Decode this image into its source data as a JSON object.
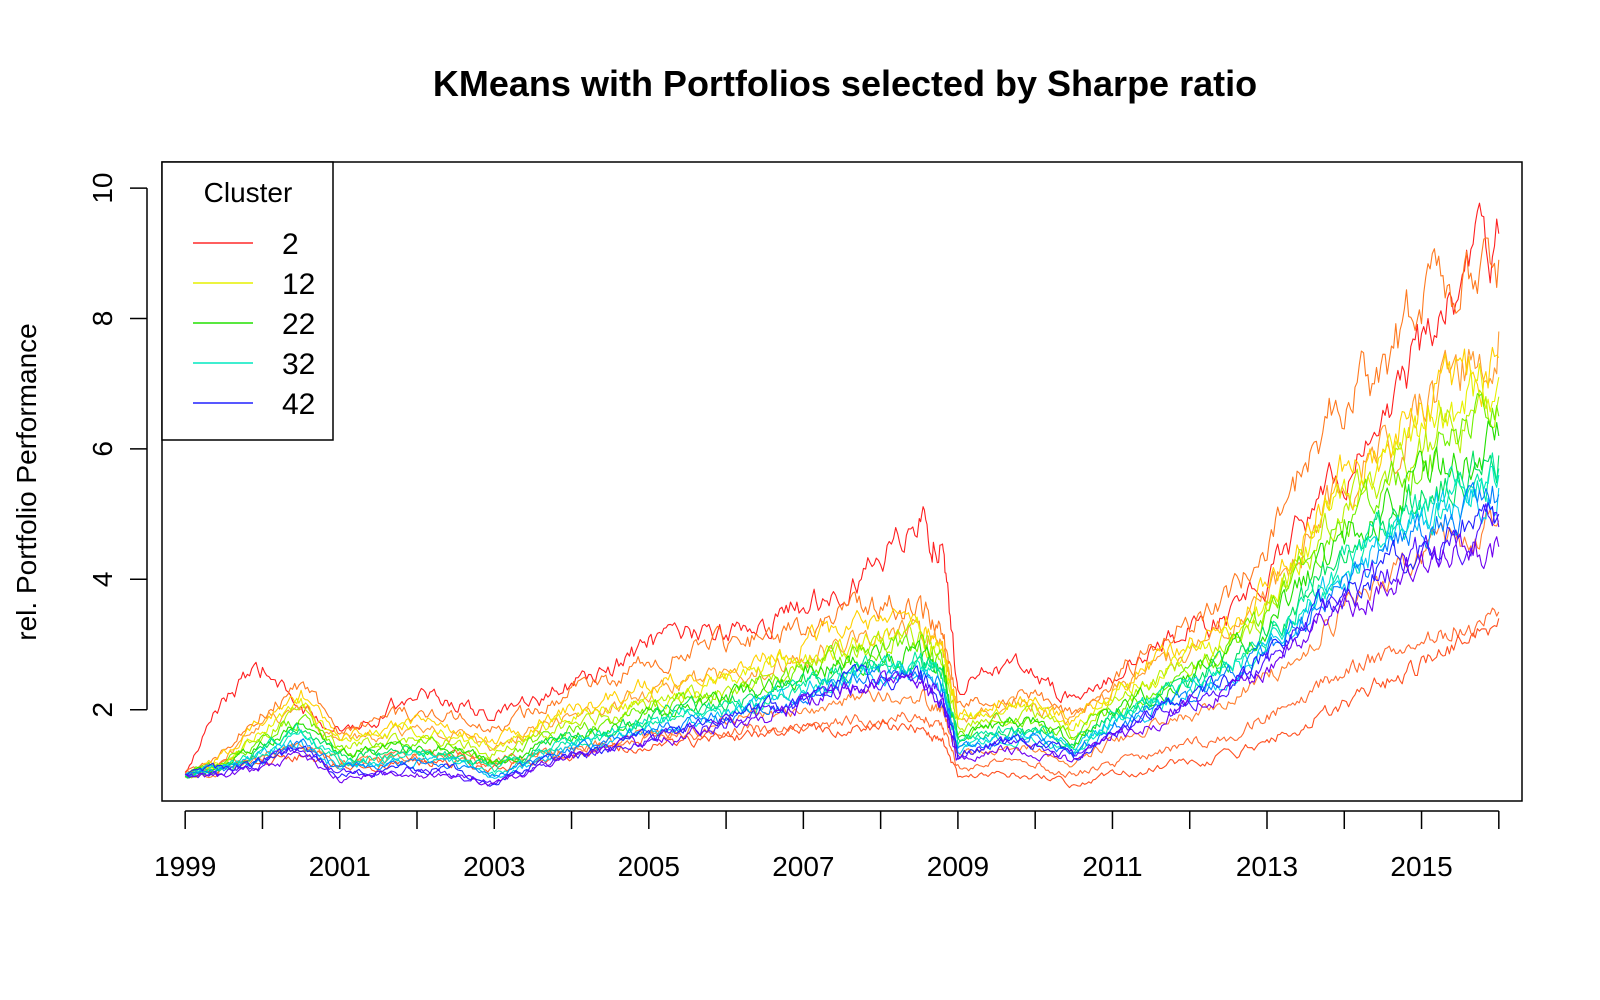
{
  "chart_data": {
    "type": "line",
    "title": "KMeans with Portfolios selected by Sharpe ratio",
    "xlabel": "",
    "ylabel": "rel. Portfolio Performance",
    "xlim": [
      1998.7,
      2016.3
    ],
    "ylim": [
      0.6,
      10.4
    ],
    "x_ticks": [
      1999,
      2000,
      2001,
      2002,
      2003,
      2004,
      2005,
      2006,
      2007,
      2008,
      2009,
      2010,
      2011,
      2012,
      2013,
      2014,
      2015,
      2016
    ],
    "x_tick_labels": [
      "1999",
      "2001",
      "2003",
      "2005",
      "2007",
      "2009",
      "2011",
      "2013",
      "2015"
    ],
    "x_tick_label_values": [
      1999,
      2001,
      2003,
      2005,
      2007,
      2009,
      2011,
      2013,
      2015
    ],
    "y_ticks": [
      2,
      4,
      6,
      8,
      10
    ],
    "y_tick_labels": [
      "2",
      "4",
      "6",
      "8",
      "10"
    ],
    "grid": false,
    "legend": {
      "title": "Cluster",
      "position": "top-left",
      "entries": [
        {
          "label": "2",
          "color": "#ff2a2a"
        },
        {
          "label": "12",
          "color": "#e6f000"
        },
        {
          "label": "22",
          "color": "#22e000"
        },
        {
          "label": "32",
          "color": "#00e8c0"
        },
        {
          "label": "42",
          "color": "#2020ff"
        }
      ]
    },
    "x_points": [
      1999,
      1999.5,
      2000,
      2000.5,
      2001,
      2001.5,
      2002,
      2002.5,
      2003,
      2003.5,
      2004,
      2004.5,
      2005,
      2005.5,
      2006,
      2006.5,
      2007,
      2007.5,
      2008,
      2008.5,
      2008.8,
      2009,
      2009.5,
      2010,
      2010.5,
      2011,
      2011.5,
      2012,
      2012.5,
      2013,
      2013.5,
      2014,
      2014.5,
      2015,
      2015.5,
      2016
    ],
    "series": [
      {
        "color": "#ff2020",
        "values": [
          1.0,
          2.2,
          2.6,
          2.0,
          1.7,
          1.9,
          2.3,
          2.1,
          1.9,
          2.1,
          2.4,
          2.6,
          3.0,
          3.1,
          3.2,
          3.3,
          3.6,
          3.9,
          4.3,
          4.9,
          4.5,
          2.3,
          2.7,
          2.6,
          2.1,
          2.5,
          2.9,
          3.2,
          3.4,
          4.0,
          4.9,
          5.6,
          6.3,
          7.6,
          8.4,
          9.3
        ]
      },
      {
        "color": "#ff7a20",
        "values": [
          1.0,
          1.4,
          2.0,
          2.3,
          1.7,
          1.8,
          2.0,
          1.9,
          1.7,
          2.0,
          2.3,
          2.5,
          2.7,
          2.9,
          3.0,
          3.1,
          3.3,
          3.6,
          3.6,
          3.6,
          3.3,
          2.0,
          2.2,
          2.2,
          1.9,
          2.5,
          2.9,
          3.3,
          3.7,
          4.4,
          5.8,
          6.8,
          7.1,
          8.4,
          8.6,
          8.9
        ]
      },
      {
        "color": "#ff9a30",
        "values": [
          1.0,
          1.2,
          1.8,
          2.0,
          1.5,
          1.6,
          1.7,
          1.6,
          1.4,
          1.7,
          1.9,
          2.0,
          2.3,
          2.4,
          2.5,
          2.6,
          2.8,
          3.0,
          3.0,
          3.2,
          3.0,
          1.9,
          2.0,
          2.1,
          1.8,
          2.3,
          2.6,
          2.9,
          3.2,
          3.7,
          4.6,
          5.4,
          5.9,
          6.6,
          7.2,
          7.8
        ]
      },
      {
        "color": "#ff6a30",
        "values": [
          1.0,
          1.2,
          1.3,
          1.4,
          1.2,
          1.2,
          1.3,
          1.3,
          1.2,
          1.3,
          1.4,
          1.5,
          1.6,
          1.6,
          1.7,
          1.7,
          1.8,
          1.8,
          1.9,
          1.9,
          1.7,
          1.1,
          1.2,
          1.2,
          1.0,
          1.2,
          1.3,
          1.5,
          1.6,
          1.9,
          2.2,
          2.6,
          2.8,
          3.0,
          3.3,
          3.5
        ]
      },
      {
        "color": "#ff5020",
        "values": [
          1.0,
          1.1,
          1.2,
          1.3,
          1.1,
          1.1,
          1.2,
          1.2,
          1.1,
          1.2,
          1.3,
          1.4,
          1.5,
          1.5,
          1.6,
          1.6,
          1.7,
          1.7,
          1.8,
          1.7,
          1.5,
          0.95,
          1.0,
          1.0,
          0.85,
          1.0,
          1.1,
          1.2,
          1.3,
          1.5,
          1.8,
          2.1,
          2.4,
          2.7,
          3.0,
          3.4
        ]
      },
      {
        "color": "#ff8030",
        "values": [
          1.0,
          1.1,
          1.3,
          1.5,
          1.2,
          1.2,
          1.3,
          1.3,
          1.2,
          1.3,
          1.4,
          1.5,
          1.6,
          1.7,
          1.8,
          1.9,
          2.0,
          2.1,
          2.2,
          2.2,
          2.0,
          1.3,
          1.4,
          1.4,
          1.2,
          1.5,
          1.7,
          1.9,
          2.1,
          2.5,
          3.0,
          3.5,
          3.9,
          4.3,
          4.6,
          4.9
        ]
      },
      {
        "color": "#ffd000",
        "values": [
          1.0,
          1.3,
          1.8,
          2.2,
          1.6,
          1.7,
          1.8,
          1.7,
          1.5,
          1.8,
          2.0,
          2.2,
          2.4,
          2.5,
          2.6,
          2.8,
          3.0,
          3.3,
          3.3,
          3.4,
          3.1,
          1.9,
          2.1,
          2.1,
          1.8,
          2.3,
          2.7,
          3.0,
          3.3,
          3.9,
          4.8,
          5.6,
          6.1,
          6.6,
          7.0,
          7.4
        ]
      },
      {
        "color": "#e6f000",
        "values": [
          1.0,
          1.2,
          1.7,
          2.1,
          1.5,
          1.6,
          1.7,
          1.6,
          1.4,
          1.7,
          1.9,
          2.0,
          2.2,
          2.3,
          2.4,
          2.6,
          2.8,
          3.0,
          3.1,
          3.2,
          2.9,
          1.8,
          2.0,
          2.0,
          1.7,
          2.2,
          2.5,
          2.8,
          3.1,
          3.6,
          4.5,
          5.3,
          5.8,
          6.3,
          6.7,
          7.1
        ]
      },
      {
        "color": "#b8f000",
        "values": [
          1.0,
          1.2,
          1.6,
          2.0,
          1.4,
          1.5,
          1.6,
          1.5,
          1.3,
          1.6,
          1.8,
          1.9,
          2.1,
          2.2,
          2.3,
          2.5,
          2.7,
          2.9,
          3.0,
          3.1,
          2.8,
          1.7,
          1.9,
          1.9,
          1.6,
          2.1,
          2.4,
          2.7,
          3.0,
          3.5,
          4.3,
          5.0,
          5.5,
          6.0,
          6.4,
          6.8
        ]
      },
      {
        "color": "#70f000",
        "values": [
          1.0,
          1.2,
          1.5,
          1.9,
          1.4,
          1.4,
          1.5,
          1.4,
          1.2,
          1.5,
          1.7,
          1.8,
          2.0,
          2.1,
          2.2,
          2.4,
          2.6,
          2.8,
          2.9,
          3.0,
          2.7,
          1.6,
          1.8,
          1.8,
          1.6,
          2.0,
          2.3,
          2.6,
          2.9,
          3.4,
          4.1,
          4.8,
          5.3,
          5.8,
          6.1,
          6.5
        ]
      },
      {
        "color": "#22e000",
        "values": [
          1.0,
          1.1,
          1.5,
          1.8,
          1.3,
          1.4,
          1.4,
          1.4,
          1.2,
          1.4,
          1.6,
          1.7,
          1.9,
          2.0,
          2.2,
          2.3,
          2.5,
          2.7,
          2.8,
          2.9,
          2.6,
          1.6,
          1.8,
          1.8,
          1.5,
          2.0,
          2.2,
          2.5,
          2.8,
          3.3,
          4.0,
          4.6,
          5.1,
          5.6,
          5.9,
          6.2
        ]
      },
      {
        "color": "#00e060",
        "values": [
          1.0,
          1.1,
          1.4,
          1.7,
          1.3,
          1.3,
          1.4,
          1.3,
          1.1,
          1.4,
          1.6,
          1.7,
          1.9,
          2.0,
          2.1,
          2.3,
          2.4,
          2.6,
          2.7,
          2.8,
          2.5,
          1.5,
          1.7,
          1.7,
          1.5,
          1.9,
          2.2,
          2.4,
          2.7,
          3.2,
          3.8,
          4.4,
          4.9,
          5.3,
          5.6,
          5.9
        ]
      },
      {
        "color": "#00e8a0",
        "values": [
          1.0,
          1.1,
          1.4,
          1.7,
          1.2,
          1.3,
          1.3,
          1.3,
          1.1,
          1.3,
          1.5,
          1.6,
          1.8,
          1.9,
          2.0,
          2.2,
          2.4,
          2.6,
          2.7,
          2.8,
          2.5,
          1.5,
          1.7,
          1.7,
          1.4,
          1.9,
          2.1,
          2.4,
          2.6,
          3.1,
          3.7,
          4.3,
          4.7,
          5.1,
          5.4,
          5.7
        ]
      },
      {
        "color": "#00e8c0",
        "values": [
          1.0,
          1.1,
          1.3,
          1.6,
          1.2,
          1.2,
          1.3,
          1.2,
          1.0,
          1.3,
          1.5,
          1.6,
          1.8,
          1.9,
          2.0,
          2.1,
          2.3,
          2.5,
          2.6,
          2.7,
          2.4,
          1.4,
          1.6,
          1.6,
          1.4,
          1.8,
          2.1,
          2.3,
          2.6,
          3.0,
          3.6,
          4.2,
          4.6,
          5.0,
          5.3,
          5.6
        ]
      },
      {
        "color": "#00c8f0",
        "values": [
          1.0,
          1.1,
          1.3,
          1.5,
          1.1,
          1.2,
          1.2,
          1.2,
          1.0,
          1.2,
          1.4,
          1.5,
          1.7,
          1.8,
          1.9,
          2.1,
          2.3,
          2.5,
          2.6,
          2.6,
          2.3,
          1.4,
          1.6,
          1.6,
          1.4,
          1.8,
          2.0,
          2.3,
          2.5,
          2.9,
          3.5,
          4.1,
          4.5,
          4.9,
          5.1,
          5.4
        ]
      },
      {
        "color": "#0080ff",
        "values": [
          1.0,
          1.1,
          1.2,
          1.5,
          1.1,
          1.1,
          1.2,
          1.1,
          0.95,
          1.2,
          1.4,
          1.5,
          1.7,
          1.8,
          1.9,
          2.0,
          2.2,
          2.4,
          2.5,
          2.6,
          2.3,
          1.4,
          1.5,
          1.6,
          1.3,
          1.7,
          2.0,
          2.2,
          2.5,
          2.9,
          3.4,
          4.0,
          4.4,
          4.8,
          5.0,
          5.3
        ]
      },
      {
        "color": "#2020ff",
        "values": [
          1.0,
          1.1,
          1.2,
          1.4,
          1.0,
          1.1,
          1.1,
          1.1,
          0.9,
          1.2,
          1.3,
          1.4,
          1.6,
          1.7,
          1.9,
          2.0,
          2.2,
          2.4,
          2.5,
          2.5,
          2.2,
          1.3,
          1.5,
          1.5,
          1.3,
          1.7,
          1.9,
          2.2,
          2.4,
          2.8,
          3.3,
          3.9,
          4.2,
          4.6,
          4.8,
          5.0
        ]
      },
      {
        "color": "#5010ff",
        "values": [
          1.0,
          1.0,
          1.2,
          1.4,
          1.0,
          1.0,
          1.1,
          1.0,
          0.85,
          1.1,
          1.3,
          1.4,
          1.6,
          1.7,
          1.8,
          2.0,
          2.1,
          2.3,
          2.4,
          2.5,
          2.2,
          1.3,
          1.5,
          1.5,
          1.3,
          1.6,
          1.9,
          2.1,
          2.4,
          2.7,
          3.2,
          3.7,
          4.1,
          4.4,
          4.6,
          4.8
        ]
      },
      {
        "color": "#7000f0",
        "values": [
          1.0,
          1.0,
          1.1,
          1.3,
          0.95,
          1.0,
          1.0,
          1.0,
          0.85,
          1.1,
          1.3,
          1.4,
          1.5,
          1.6,
          1.8,
          1.9,
          2.1,
          2.3,
          2.4,
          2.4,
          2.1,
          1.2,
          1.4,
          1.4,
          1.2,
          1.6,
          1.8,
          2.1,
          2.3,
          2.6,
          3.1,
          3.6,
          3.9,
          4.2,
          4.4,
          4.5
        ]
      }
    ]
  }
}
